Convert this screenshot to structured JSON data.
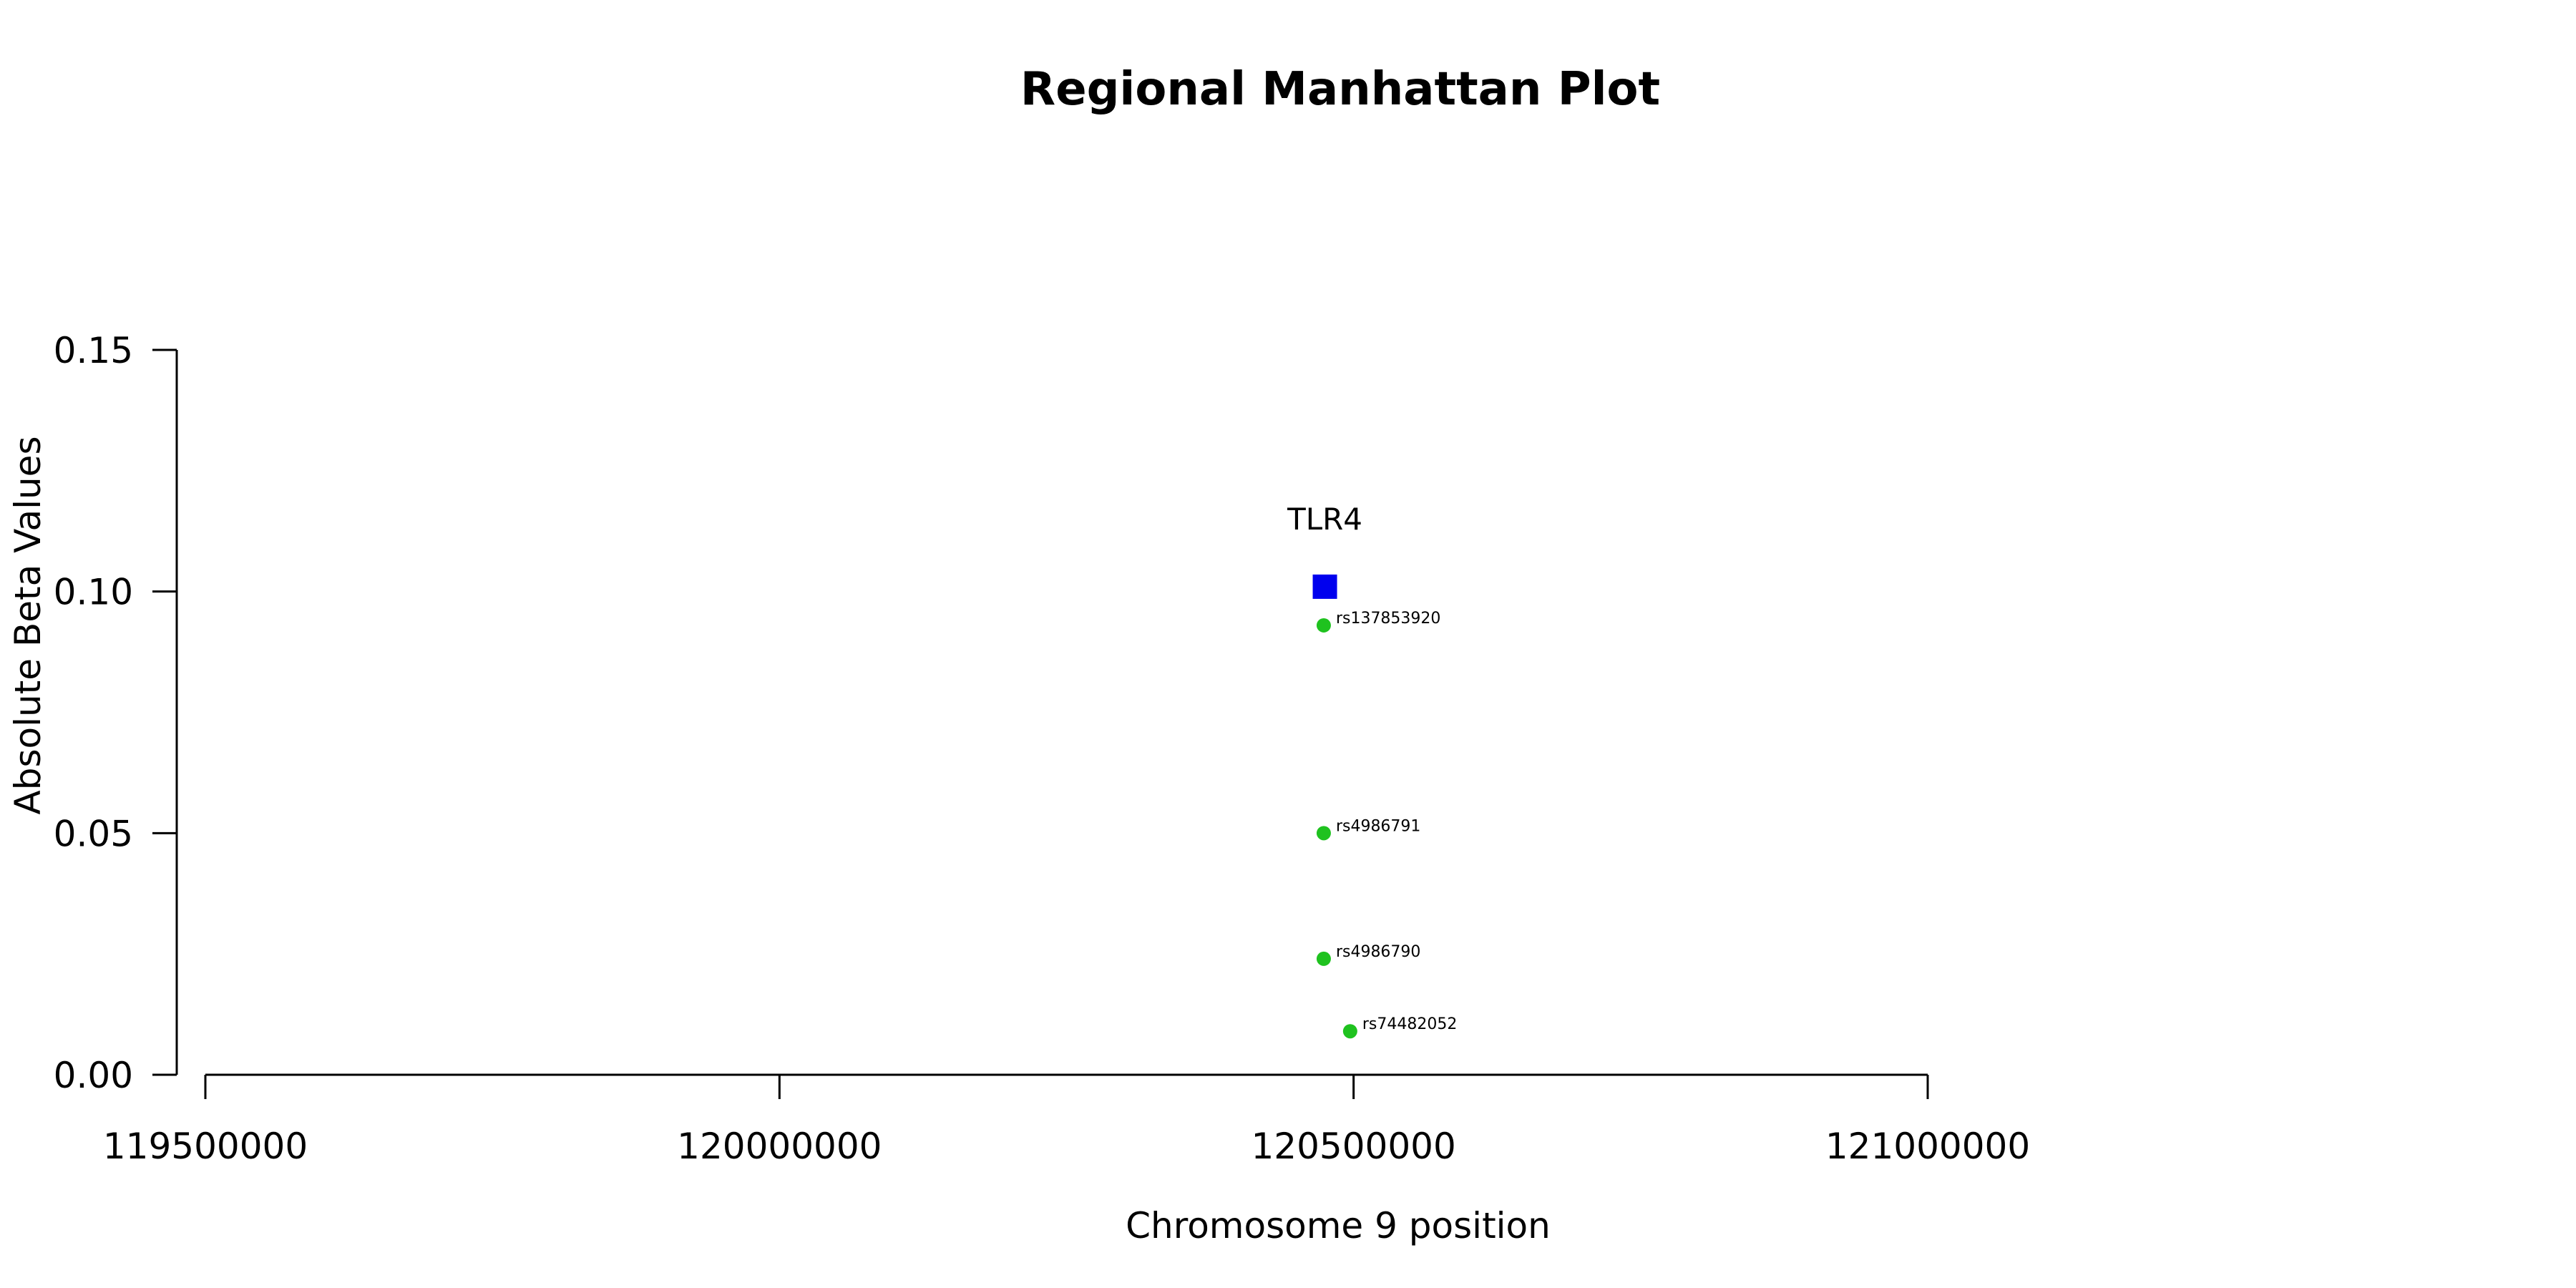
{
  "chart_data": {
    "type": "scatter",
    "title": "Regional Manhattan Plot",
    "xlabel": "Chromosome 9 position",
    "ylabel": "Absolute Beta Values",
    "xlim": [
      119500000,
      121000000
    ],
    "ylim": [
      0,
      0.15
    ],
    "x_ticks": [
      119500000,
      120000000,
      120500000,
      121000000
    ],
    "x_tick_labels": [
      "119500000",
      "120000000",
      "120500000",
      "121000000"
    ],
    "y_ticks": [
      0,
      0.05,
      0.1,
      0.15
    ],
    "y_tick_labels": [
      "0.00",
      "0.05",
      "0.10",
      "0.15"
    ],
    "grid": false,
    "colors": {
      "snp": "#1fc21f",
      "gene": "#0000ee"
    },
    "genes": [
      {
        "label": "TLR4",
        "x": 120475000,
        "y": 0.101,
        "marker": "square"
      }
    ],
    "series": [
      {
        "points": [
          {
            "x": 120474000,
            "y": 0.093,
            "label": "rs137853920"
          },
          {
            "x": 120474000,
            "y": 0.05,
            "label": "rs4986791"
          },
          {
            "x": 120474000,
            "y": 0.024,
            "label": "rs4986790"
          },
          {
            "x": 120497000,
            "y": 0.009,
            "label": "rs74482052"
          }
        ]
      }
    ]
  }
}
